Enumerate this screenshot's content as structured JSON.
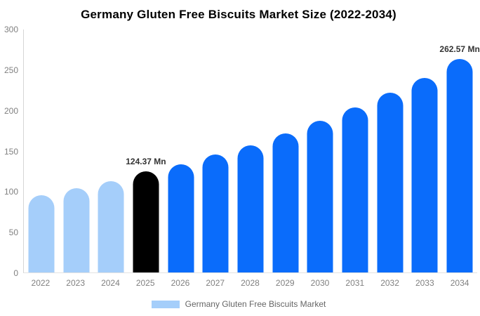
{
  "chart_data": {
    "type": "bar",
    "title": "Germany Gluten Free Biscuits Market Size (2022-2034)",
    "categories": [
      "2022",
      "2023",
      "2024",
      "2025",
      "2026",
      "2027",
      "2028",
      "2029",
      "2030",
      "2031",
      "2032",
      "2033",
      "2034"
    ],
    "values": [
      95,
      103.5,
      112,
      124.37,
      133,
      145,
      156.5,
      171,
      186.5,
      203,
      221,
      239.5,
      262.57
    ],
    "unit": "Mn",
    "xlabel": "",
    "ylabel": "",
    "ylim": [
      0,
      300
    ],
    "yticks": [
      0,
      50,
      100,
      150,
      200,
      250,
      300
    ],
    "grid": false,
    "legend_position": "bottom",
    "bar_colors": [
      "#a5cefa",
      "#a5cefa",
      "#a5cefa",
      "#000000",
      "#0a6cfb",
      "#0a6cfb",
      "#0a6cfb",
      "#0a6cfb",
      "#0a6cfb",
      "#0a6cfb",
      "#0a6cfb",
      "#0a6cfb",
      "#0a6cfb"
    ],
    "data_labels": [
      {
        "index": 3,
        "text": "124.37 Mn"
      },
      {
        "index": 12,
        "text": "262.57 Mn"
      }
    ],
    "legend": [
      {
        "label": "Germany Gluten Free Biscuits Market",
        "color": "#a5cefa"
      }
    ]
  },
  "colors": {
    "highlight_bar": "#000000",
    "forecast_bar": "#0a6cfb",
    "history_bar": "#a5cefa",
    "axis_line": "#d5d5d5",
    "tick_text": "#808080",
    "data_label_text": "#333333",
    "legend_text": "#666666",
    "background": "#ffffff"
  }
}
